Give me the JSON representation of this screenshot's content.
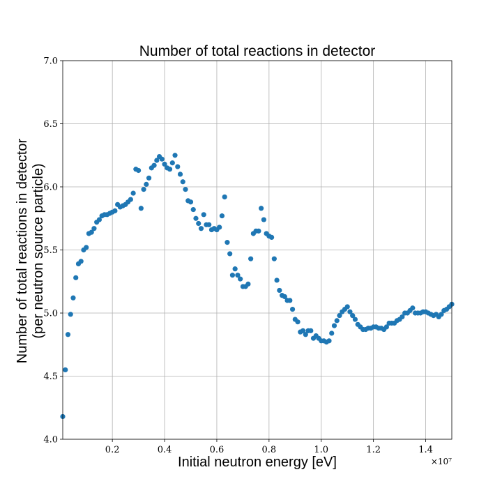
{
  "chart_data": {
    "type": "scatter",
    "title": "Number of total reactions in detector",
    "xlabel": "Initial neutron energy [eV]",
    "ylabel": [
      "Number of total reactions in detector",
      "(per neutron source particle)"
    ],
    "x_offset_label": "×10⁷",
    "xlim": [
      0.1,
      15.0
    ],
    "ylim": [
      4.0,
      7.0
    ],
    "x_unit_scale": 10000000,
    "x_ticks": [
      2,
      4,
      6,
      8,
      10,
      12,
      14
    ],
    "x_tick_labels": [
      "0.2",
      "0.4",
      "0.6",
      "0.8",
      "1.0",
      "1.2",
      "1.4"
    ],
    "y_ticks": [
      4.0,
      4.5,
      5.0,
      5.5,
      6.0,
      6.5,
      7.0
    ],
    "y_tick_labels": [
      "4.0",
      "4.5",
      "5.0",
      "5.5",
      "6.0",
      "6.5",
      "7.0"
    ],
    "grid": true,
    "marker_color": "#1f77b4",
    "series": [
      {
        "x": [
          0.1,
          0.2,
          0.3,
          0.4,
          0.5,
          0.6,
          0.7,
          0.8,
          0.9,
          1.0,
          1.1,
          1.2,
          1.3,
          1.4,
          1.5,
          1.6,
          1.7,
          1.8,
          1.9,
          2.0,
          2.1,
          2.2,
          2.3,
          2.4,
          2.5,
          2.6,
          2.7,
          2.8,
          2.9,
          3.0,
          3.1,
          3.2,
          3.3,
          3.4,
          3.5,
          3.6,
          3.7,
          3.8,
          3.9,
          4.0,
          4.1,
          4.2,
          4.3,
          4.4,
          4.5,
          4.6,
          4.7,
          4.8,
          4.9,
          5.0,
          5.1,
          5.2,
          5.3,
          5.4,
          5.5,
          5.6,
          5.7,
          5.8,
          5.9,
          6.0,
          6.1,
          6.2,
          6.3,
          6.4,
          6.5,
          6.6,
          6.7,
          6.8,
          6.9,
          7.0,
          7.1,
          7.2,
          7.3,
          7.4,
          7.5,
          7.6,
          7.7,
          7.8,
          7.9,
          8.0,
          8.1,
          8.2,
          8.3,
          8.4,
          8.5,
          8.6,
          8.7,
          8.8,
          8.9,
          9.0,
          9.1,
          9.2,
          9.3,
          9.4,
          9.5,
          9.6,
          9.7,
          9.8,
          9.9,
          10.0,
          10.1,
          10.2,
          10.3,
          10.4,
          10.5,
          10.6,
          10.7,
          10.8,
          10.9,
          11.0,
          11.1,
          11.2,
          11.3,
          11.4,
          11.5,
          11.6,
          11.7,
          11.8,
          11.9,
          12.0,
          12.1,
          12.2,
          12.3,
          12.4,
          12.5,
          12.6,
          12.7,
          12.8,
          12.9,
          13.0,
          13.1,
          13.2,
          13.3,
          13.4,
          13.5,
          13.6,
          13.7,
          13.8,
          13.9,
          14.0,
          14.1,
          14.2,
          14.3,
          14.4,
          14.5,
          14.6,
          14.7,
          14.8,
          14.9,
          15.0
        ],
        "y": [
          4.18,
          4.55,
          4.83,
          4.99,
          5.12,
          5.28,
          5.39,
          5.41,
          5.5,
          5.52,
          5.63,
          5.64,
          5.67,
          5.72,
          5.74,
          5.77,
          5.78,
          5.78,
          5.79,
          5.8,
          5.81,
          5.86,
          5.84,
          5.85,
          5.86,
          5.88,
          5.9,
          5.95,
          6.14,
          6.13,
          5.83,
          5.98,
          6.02,
          6.07,
          6.15,
          6.17,
          6.21,
          6.24,
          6.22,
          6.18,
          6.15,
          6.14,
          6.19,
          6.25,
          6.16,
          6.1,
          6.04,
          5.98,
          5.89,
          5.88,
          5.82,
          5.75,
          5.71,
          5.67,
          5.78,
          5.7,
          5.7,
          5.66,
          5.67,
          5.66,
          5.68,
          5.77,
          5.92,
          5.56,
          5.47,
          5.3,
          5.35,
          5.3,
          5.27,
          5.21,
          5.21,
          5.23,
          5.43,
          5.63,
          5.65,
          5.65,
          5.83,
          5.74,
          5.63,
          5.61,
          5.6,
          5.43,
          5.26,
          5.18,
          5.14,
          5.13,
          5.1,
          5.1,
          5.03,
          4.95,
          4.93,
          4.85,
          4.86,
          4.83,
          4.86,
          4.86,
          4.8,
          4.82,
          4.8,
          4.78,
          4.78,
          4.77,
          4.78,
          4.84,
          4.9,
          4.94,
          4.98,
          5.01,
          5.03,
          5.05,
          5.01,
          4.98,
          4.95,
          4.91,
          4.89,
          4.87,
          4.87,
          4.88,
          4.88,
          4.89,
          4.89,
          4.88,
          4.88,
          4.87,
          4.89,
          4.92,
          4.92,
          4.92,
          4.94,
          4.95,
          4.97,
          5.0,
          5.0,
          5.02,
          5.04,
          5.0,
          5.0,
          5.0,
          5.01,
          5.01,
          5.0,
          4.99,
          4.98,
          4.99,
          4.97,
          4.99,
          5.02,
          5.03,
          5.05,
          5.07
        ]
      }
    ]
  }
}
